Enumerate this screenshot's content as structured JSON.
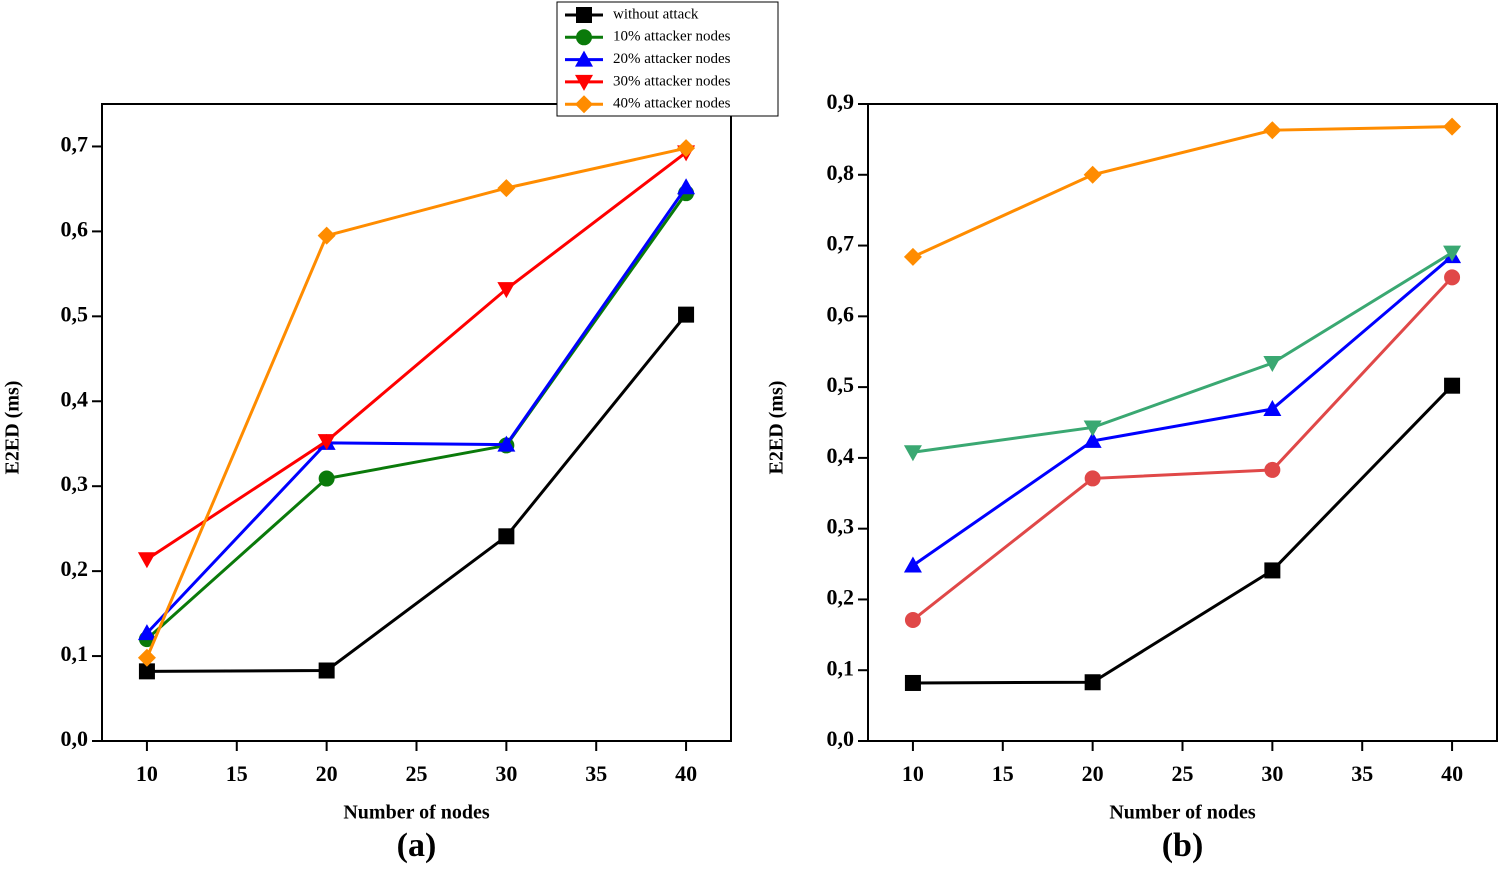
{
  "chart_data": [
    {
      "type": "line",
      "title": "(a)",
      "x_label": "Number of nodes",
      "y_label": "E2ED (ms)",
      "x": [
        10,
        20,
        30,
        40
      ],
      "xlim": [
        7.5,
        42.5
      ],
      "xticks": [
        10,
        15,
        20,
        25,
        30,
        35,
        40
      ],
      "ylim": [
        0,
        0.75
      ],
      "yticks": [
        {
          "value": 0,
          "label": "0,0"
        },
        {
          "value": 0.1,
          "label": "0,1"
        },
        {
          "value": 0.2,
          "label": "0,2"
        },
        {
          "value": 0.3,
          "label": "0,3"
        },
        {
          "value": 0.4,
          "label": "0,4"
        },
        {
          "value": 0.5,
          "label": "0,5"
        },
        {
          "value": 0.6,
          "label": "0,6"
        },
        {
          "value": 0.7,
          "label": "0,7"
        }
      ],
      "legend": "top",
      "series": [
        {
          "name": "without attack",
          "color": "#000000",
          "marker": "square",
          "values": [
            0.082,
            0.083,
            0.241,
            0.502
          ]
        },
        {
          "name": "10% attacker nodes",
          "color": "#0a7a0a",
          "marker": "circle",
          "values": [
            0.12,
            0.309,
            0.348,
            0.645
          ]
        },
        {
          "name": "20% attacker nodes",
          "color": "#0000ff",
          "marker": "triangle-up",
          "values": [
            0.127,
            0.351,
            0.349,
            0.652
          ]
        },
        {
          "name": "30% attacker nodes",
          "color": "#ff0000",
          "marker": "triangle-down",
          "values": [
            0.214,
            0.353,
            0.532,
            0.693
          ]
        },
        {
          "name": "40% attacker nodes",
          "color": "#ff8c00",
          "marker": "diamond",
          "values": [
            0.098,
            0.595,
            0.651,
            0.698
          ]
        }
      ]
    },
    {
      "type": "line",
      "title": "(b)",
      "x_label": "Number of nodes",
      "y_label": "E2ED (ms)",
      "x": [
        10,
        20,
        30,
        40
      ],
      "xlim": [
        7.5,
        42.5
      ],
      "xticks": [
        10,
        15,
        20,
        25,
        30,
        35,
        40
      ],
      "ylim": [
        0,
        0.9
      ],
      "yticks": [
        {
          "value": 0,
          "label": "0,0"
        },
        {
          "value": 0.1,
          "label": "0,1"
        },
        {
          "value": 0.2,
          "label": "0,2"
        },
        {
          "value": 0.3,
          "label": "0,3"
        },
        {
          "value": 0.4,
          "label": "0,4"
        },
        {
          "value": 0.5,
          "label": "0,5"
        },
        {
          "value": 0.6,
          "label": "0,6"
        },
        {
          "value": 0.7,
          "label": "0,7"
        },
        {
          "value": 0.8,
          "label": "0,8"
        },
        {
          "value": 0.9,
          "label": "0,9"
        }
      ],
      "series": [
        {
          "color": "#000000",
          "marker": "square",
          "values": [
            0.082,
            0.083,
            0.241,
            0.502
          ]
        },
        {
          "color": "#e04848",
          "marker": "circle",
          "values": [
            0.171,
            0.371,
            0.383,
            0.655
          ]
        },
        {
          "color": "#0000ff",
          "marker": "triangle-up",
          "values": [
            0.248,
            0.424,
            0.469,
            0.685
          ]
        },
        {
          "color": "#3aa872",
          "marker": "triangle-down",
          "values": [
            0.408,
            0.443,
            0.534,
            0.69
          ]
        },
        {
          "color": "#ff8c00",
          "marker": "diamond",
          "values": [
            0.684,
            0.8,
            0.863,
            0.868
          ]
        }
      ]
    }
  ]
}
